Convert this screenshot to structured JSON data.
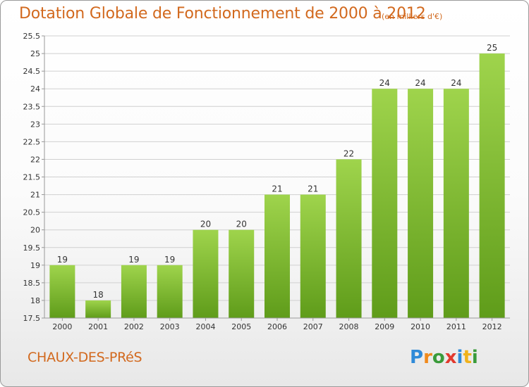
{
  "header": {
    "title": "Dotation Globale de Fonctionnement de 2000 à 2012",
    "unit_note": "(en milliers d'€)"
  },
  "footer": {
    "city": "CHAUX-DES-PRéS",
    "logo_text": "Proxiti"
  },
  "colors": {
    "title": "#d2691e",
    "bar_top": "#9fd44c",
    "bar_bottom": "#5f9c1a",
    "grid": "#d0d0d0",
    "axis": "#999999"
  },
  "chart_data": {
    "type": "bar",
    "title": "Dotation Globale de Fonctionnement de 2000 à 2012",
    "subtitle": "(en milliers d'€)",
    "categories": [
      "2000",
      "2001",
      "2002",
      "2003",
      "2004",
      "2005",
      "2006",
      "2007",
      "2008",
      "2009",
      "2010",
      "2011",
      "2012"
    ],
    "values": [
      19,
      18,
      19,
      19,
      20,
      20,
      21,
      21,
      22,
      24,
      24,
      24,
      25
    ],
    "value_labels": [
      "19",
      "18",
      "19",
      "19",
      "20",
      "20",
      "21",
      "21",
      "22",
      "24",
      "24",
      "24",
      "25"
    ],
    "ylim": [
      17.5,
      25.5
    ],
    "yticks": [
      17.5,
      18,
      18.5,
      19,
      19.5,
      20,
      20.5,
      21,
      21.5,
      22,
      22.5,
      23,
      23.5,
      24,
      24.5,
      25,
      25.5
    ],
    "ytick_labels": [
      "17.5",
      "18",
      "18.5",
      "19",
      "19.5",
      "20",
      "20.5",
      "21",
      "21.5",
      "22",
      "22.5",
      "23",
      "23.5",
      "24",
      "24.5",
      "25",
      "25.5"
    ],
    "grid": true,
    "legend": "none"
  }
}
